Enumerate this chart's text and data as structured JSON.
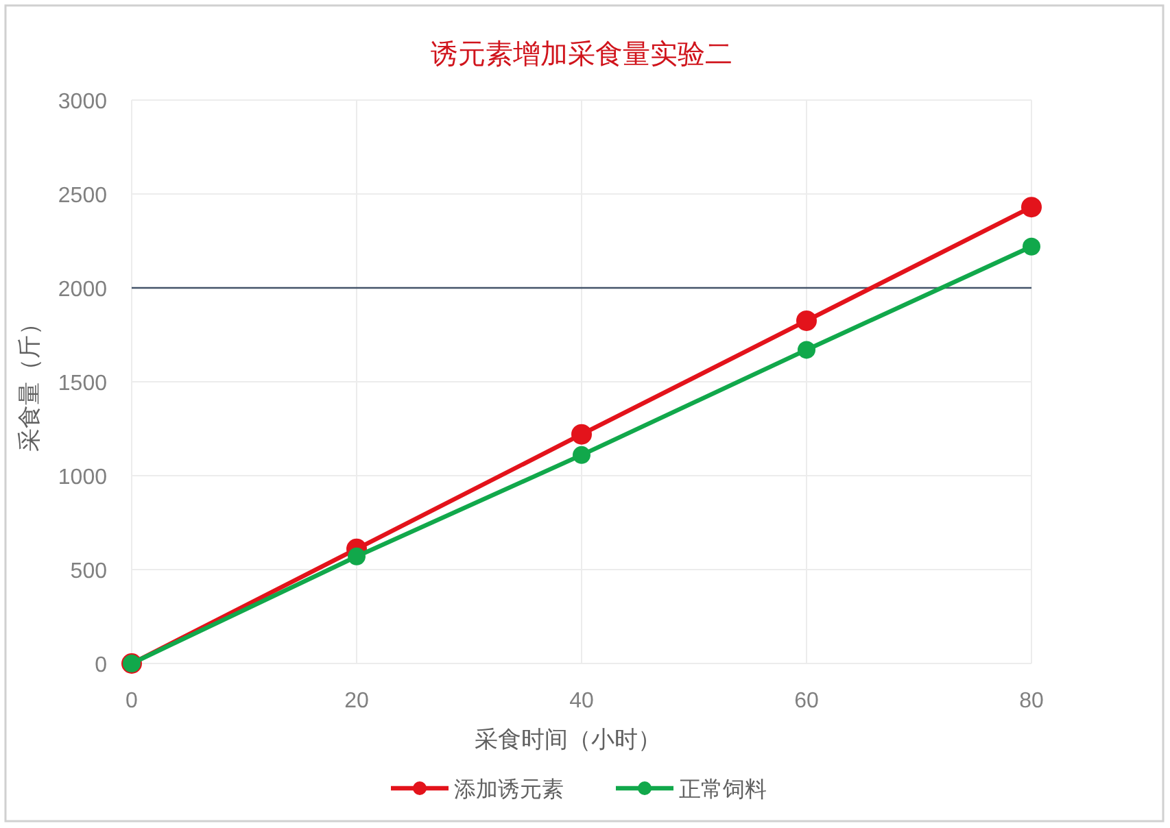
{
  "chart_data": {
    "type": "line",
    "title": "诱元素增加采食量实验二",
    "xlabel": "采食时间（小时）",
    "ylabel": "采食量（斤）",
    "x": [
      0,
      20,
      40,
      60,
      80
    ],
    "series": [
      {
        "name": "添加诱元素",
        "color": "#e3131b",
        "values": [
          0,
          610,
          1220,
          1825,
          2430
        ]
      },
      {
        "name": "正常饲料",
        "color": "#11a84b",
        "values": [
          0,
          570,
          1110,
          1670,
          2220
        ]
      }
    ],
    "xlim": [
      0,
      80
    ],
    "xticks": [
      0,
      20,
      40,
      60,
      80
    ],
    "ylim": [
      0,
      3000
    ],
    "yticks": [
      0,
      500,
      1000,
      1500,
      2000,
      2500,
      3000
    ],
    "ref_lines": [
      {
        "axis": "y",
        "value": 2000,
        "color": "#44546a"
      }
    ],
    "grid": true,
    "legend": "bottom",
    "marker": "circle",
    "line_style": "solid"
  }
}
